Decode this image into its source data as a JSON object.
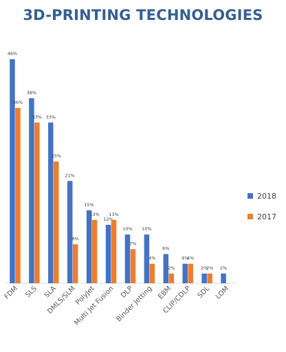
{
  "chart_data": {
    "type": "bar",
    "title": "3D-PRINTING TECHNOLOGIES",
    "categories": [
      "FDM",
      "SLS",
      "SLA",
      "DMLS/SLM",
      "PolyJet",
      "Multi Jet Fusion",
      "DLP",
      "Binder Jetting",
      "EBM",
      "CLIP/CDLP",
      "SDL",
      "LOM"
    ],
    "series": [
      {
        "name": "2018",
        "color": "#4472c4",
        "values": [
          46,
          38,
          33,
          21,
          15,
          12,
          10,
          10,
          6,
          4,
          2,
          2
        ]
      },
      {
        "name": "2017",
        "color": "#ed7d31",
        "values": [
          36,
          33,
          25,
          8,
          13,
          13,
          7,
          4,
          2,
          4,
          2,
          null
        ]
      }
    ],
    "value_labels": [
      [
        "46%",
        "38%",
        "33%",
        "21%",
        "15%",
        "12%",
        "10%",
        "10%",
        "6%",
        "4%",
        "2%",
        "2%"
      ],
      [
        "36%",
        "33%",
        "25%",
        "8%",
        "13%",
        "13%",
        "7%",
        "4%",
        "2%",
        "4%",
        "2%",
        ""
      ]
    ],
    "ylim": [
      0,
      48
    ],
    "grid": false,
    "legend_position": "right"
  }
}
